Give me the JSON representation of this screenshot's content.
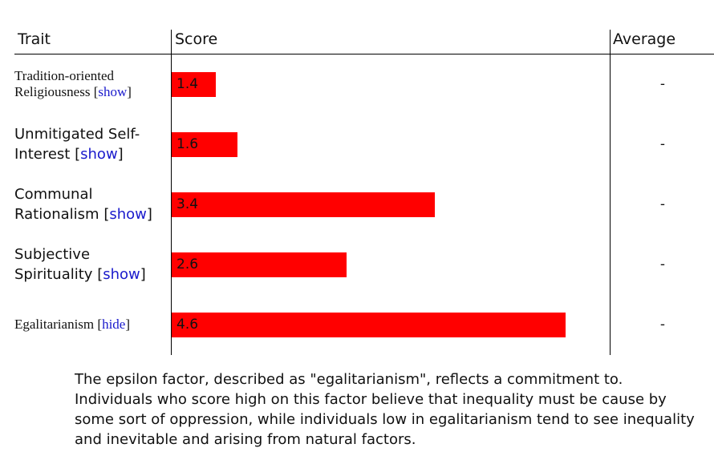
{
  "table": {
    "headers": [
      "Trait",
      "Score",
      "Average"
    ],
    "score_range": [
      1,
      5
    ],
    "bar_color": "#ff0000",
    "rows": [
      {
        "trait": "Tradition-oriented Religiousness",
        "toggle": "show",
        "score": 1.4,
        "average": "-"
      },
      {
        "trait": "Unmitigated Self-Interest",
        "toggle": "show",
        "score": 1.6,
        "average": "-"
      },
      {
        "trait": "Communal Rationalism",
        "toggle": "show",
        "score": 3.4,
        "average": "-"
      },
      {
        "trait": "Subjective Spirituality",
        "toggle": "show",
        "score": 2.6,
        "average": "-"
      },
      {
        "trait": "Egalitarianism",
        "toggle": "hide",
        "score": 4.6,
        "average": "-"
      }
    ]
  },
  "description": "The epsilon factor, described as \"egalitarianism\", reflects a commitment to. Individuals who score high on this factor believe that inequality must be cause by some sort of oppression, while individuals low in egalitarianism tend to see inequality and inevitable and arising from natural factors."
}
